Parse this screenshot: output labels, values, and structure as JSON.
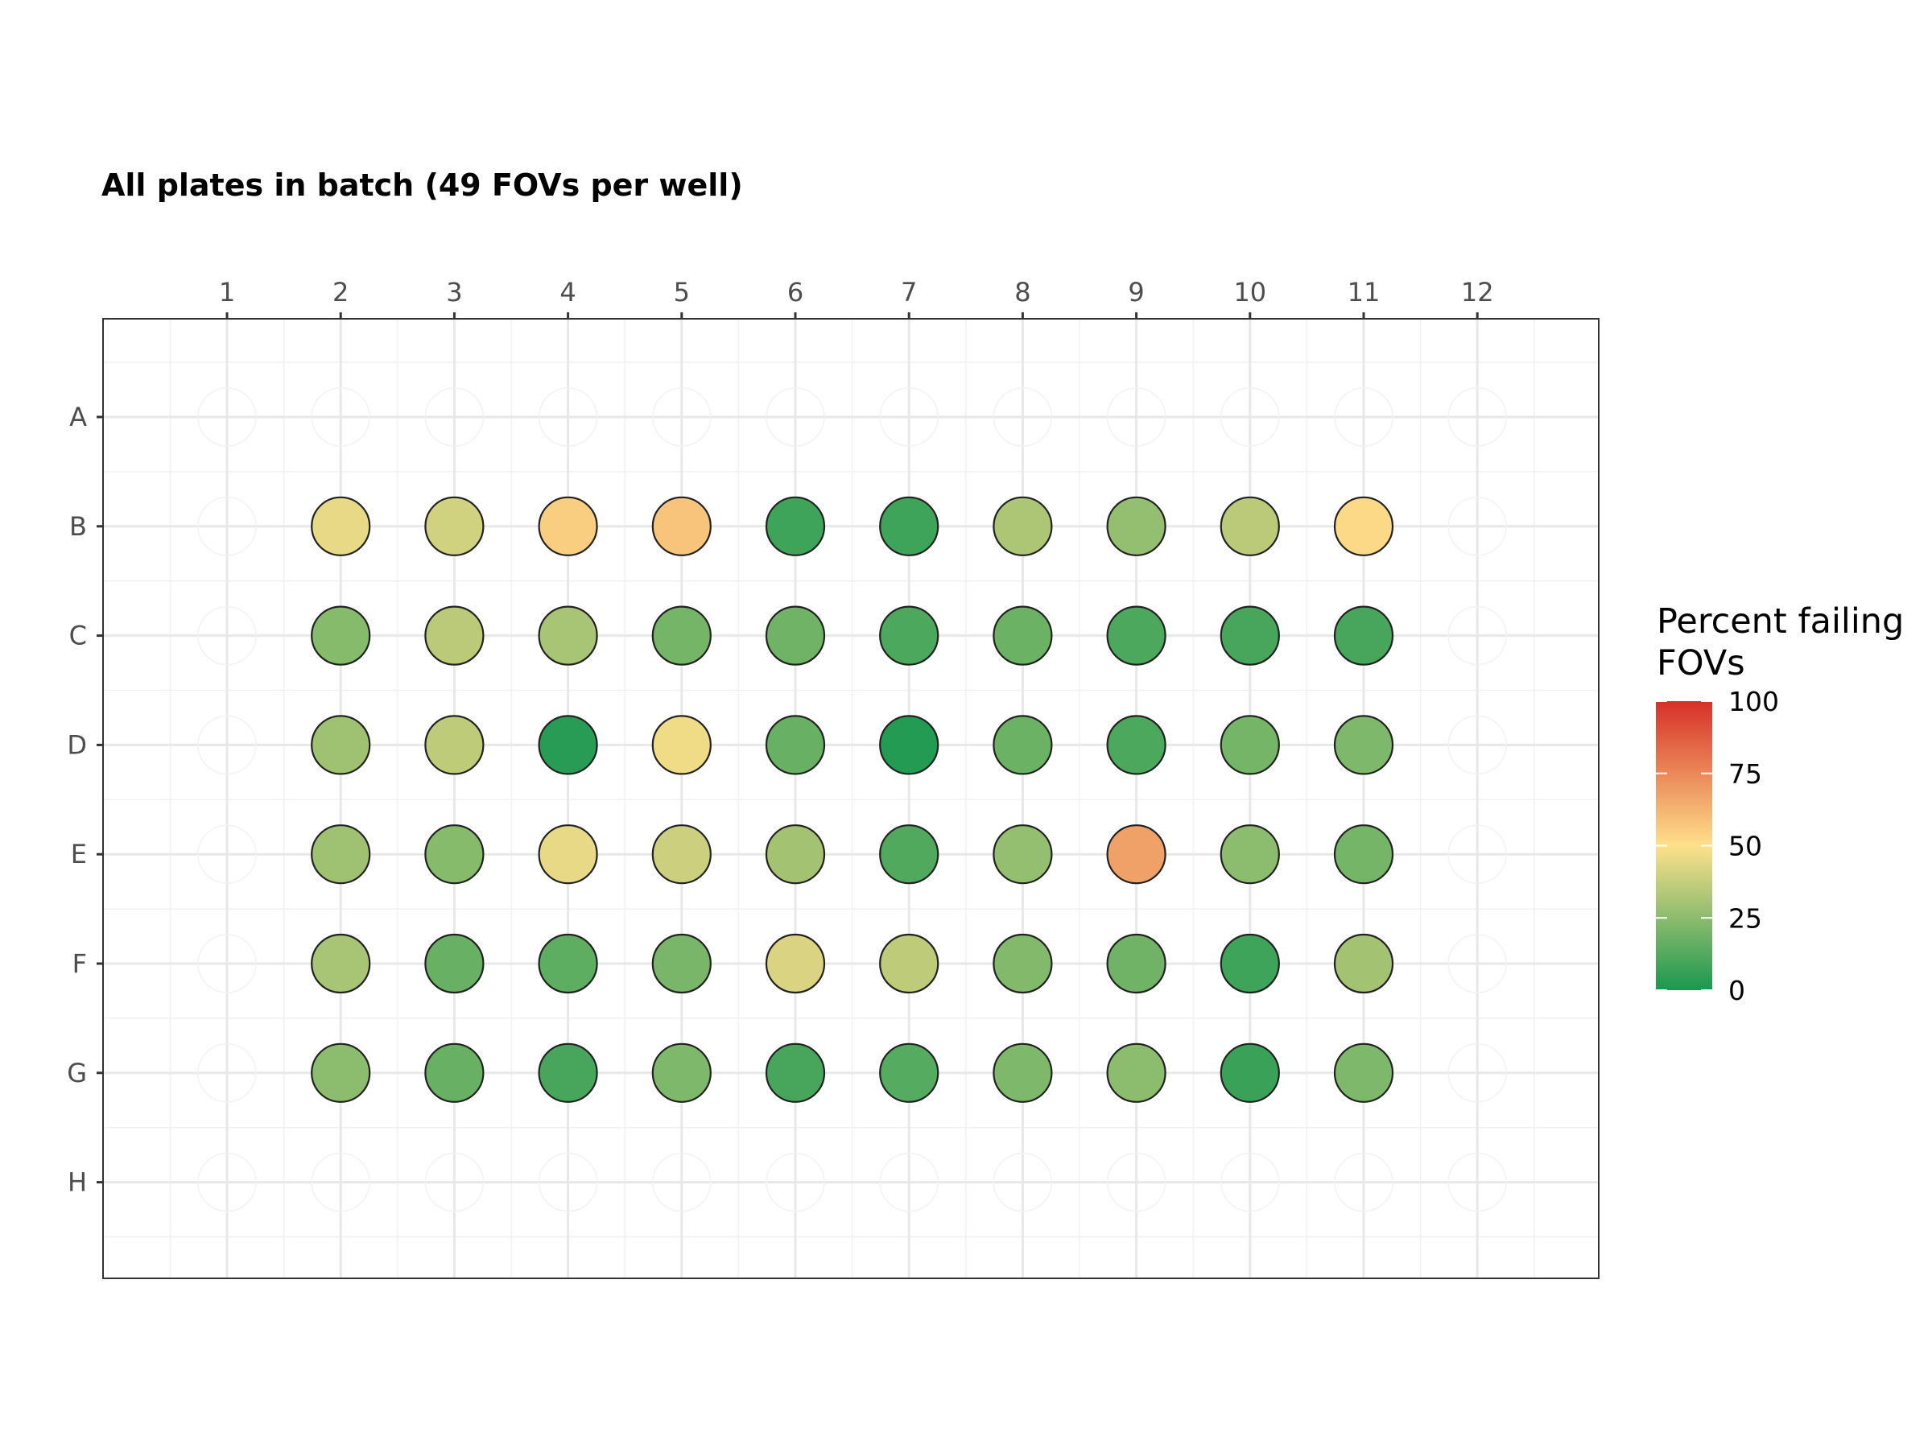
{
  "chart_data": {
    "type": "heatmap",
    "title": "All plates in batch (49 FOVs per well)",
    "xlabel": "",
    "ylabel": "",
    "columns": [
      "1",
      "2",
      "3",
      "4",
      "5",
      "6",
      "7",
      "8",
      "9",
      "10",
      "11",
      "12"
    ],
    "rows": [
      "A",
      "B",
      "C",
      "D",
      "E",
      "F",
      "G",
      "H"
    ],
    "legend": {
      "title": "Percent failing\nFOVs",
      "ticks": [
        "0",
        "25",
        "50",
        "75",
        "100"
      ],
      "range": [
        0,
        100
      ],
      "colors": [
        "#1a9850",
        "#fee08b",
        "#d73027"
      ],
      "placement": "right"
    },
    "grid": true,
    "values": [
      [
        null,
        null,
        null,
        null,
        null,
        null,
        null,
        null,
        null,
        null,
        null,
        null
      ],
      [
        null,
        45,
        40,
        55,
        58,
        8,
        8,
        32,
        27,
        35,
        52,
        null
      ],
      [
        null,
        24,
        35,
        31,
        20,
        19,
        11,
        18,
        11,
        10,
        10,
        null
      ],
      [
        null,
        29,
        36,
        3,
        47,
        17,
        2,
        18,
        11,
        20,
        22,
        null
      ],
      [
        null,
        29,
        24,
        45,
        39,
        30,
        12,
        27,
        68,
        25,
        20,
        null
      ],
      [
        null,
        31,
        17,
        15,
        21,
        42,
        36,
        23,
        19,
        8,
        30,
        null
      ],
      [
        null,
        25,
        17,
        10,
        22,
        10,
        13,
        22,
        25,
        7,
        22,
        null
      ],
      [
        null,
        null,
        null,
        null,
        null,
        null,
        null,
        null,
        null,
        null,
        null,
        null
      ]
    ]
  }
}
